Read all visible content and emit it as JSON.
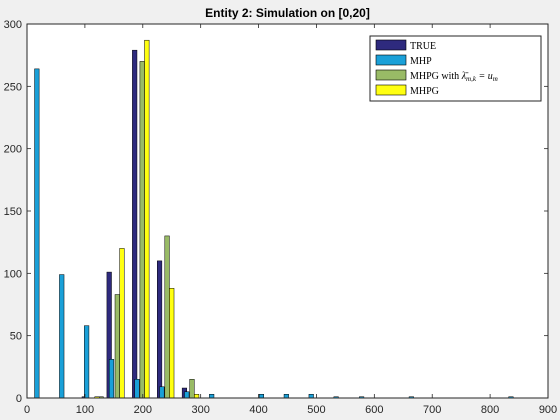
{
  "chart_data": {
    "type": "bar",
    "title": "Entity 2: Simulation on [0,20]",
    "xlabel": "",
    "ylabel": "",
    "xlim": [
      0,
      900
    ],
    "ylim": [
      0,
      300
    ],
    "xticks": [
      0,
      100,
      200,
      300,
      400,
      500,
      600,
      700,
      800,
      900
    ],
    "yticks": [
      0,
      50,
      100,
      150,
      200,
      250,
      300
    ],
    "grid": false,
    "legend_position": "top-right",
    "series": [
      {
        "name": "TRUE",
        "color": "#2e2a7e",
        "points": [
          {
            "x": 13,
            "y": 0
          },
          {
            "x": 56,
            "y": 0
          },
          {
            "x": 99,
            "y": 1
          },
          {
            "x": 142,
            "y": 101
          },
          {
            "x": 186,
            "y": 279
          },
          {
            "x": 229,
            "y": 110
          },
          {
            "x": 272,
            "y": 8
          }
        ]
      },
      {
        "name": "MHP",
        "color": "#1aa0d8",
        "points": [
          {
            "x": 17,
            "y": 264
          },
          {
            "x": 60,
            "y": 99
          },
          {
            "x": 103,
            "y": 58
          },
          {
            "x": 146,
            "y": 31
          },
          {
            "x": 190,
            "y": 15
          },
          {
            "x": 233,
            "y": 9
          },
          {
            "x": 276,
            "y": 5
          },
          {
            "x": 319,
            "y": 3
          },
          {
            "x": 362,
            "y": 0
          },
          {
            "x": 405,
            "y": 3
          },
          {
            "x": 448,
            "y": 3
          },
          {
            "x": 491,
            "y": 3
          },
          {
            "x": 534,
            "y": 1
          },
          {
            "x": 578,
            "y": 1
          },
          {
            "x": 621,
            "y": 0
          },
          {
            "x": 664,
            "y": 1
          },
          {
            "x": 707,
            "y": 0
          },
          {
            "x": 750,
            "y": 0
          },
          {
            "x": 793,
            "y": 0
          },
          {
            "x": 836,
            "y": 1
          }
        ]
      },
      {
        "name": "MHPG with λ̄m,k = um",
        "color": "#99bb66",
        "points": [
          {
            "x": 128,
            "y": 1
          },
          {
            "x": 156,
            "y": 83
          },
          {
            "x": 199,
            "y": 270
          },
          {
            "x": 242,
            "y": 130
          },
          {
            "x": 285,
            "y": 15
          }
        ]
      },
      {
        "name": "MHPG",
        "color": "#ffff11",
        "points": [
          {
            "x": 121,
            "y": 1
          },
          {
            "x": 164,
            "y": 120
          },
          {
            "x": 207,
            "y": 287
          },
          {
            "x": 250,
            "y": 88
          },
          {
            "x": 293,
            "y": 3
          }
        ]
      }
    ]
  },
  "legend": {
    "entries": [
      {
        "key": "true",
        "text": "TRUE",
        "color": "#2e2a7e"
      },
      {
        "key": "mhp",
        "text": "MHP",
        "color": "#1aa0d8"
      },
      {
        "key": "mhpg-lambda",
        "text": "MHPG with ",
        "math": "λ̄",
        "sub": "m,k",
        "eq": " = u",
        "sub2": "m",
        "color": "#99bb66"
      },
      {
        "key": "mhpg",
        "text": "MHPG",
        "color": "#ffff11"
      }
    ]
  }
}
